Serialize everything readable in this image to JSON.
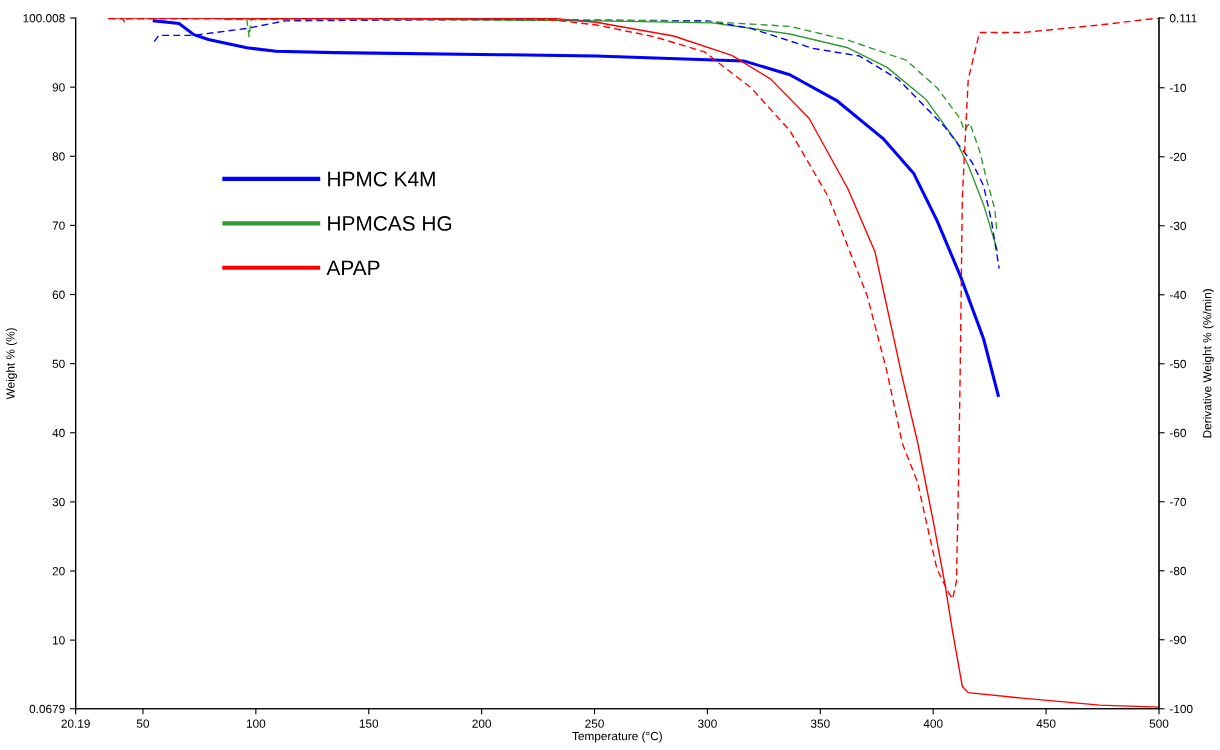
{
  "chart_data": {
    "type": "line",
    "xlabel": "Temperature (°C)",
    "ylabel": "Weight % (%)",
    "y2label": "Derivative Weight % (%/min)",
    "xlim": [
      20.19,
      500
    ],
    "xticks": [
      20.19,
      50,
      100,
      150,
      200,
      250,
      300,
      350,
      400,
      450,
      500
    ],
    "ylim": [
      0.0679,
      100.008
    ],
    "yticks": [
      0.0679,
      10,
      20,
      30,
      40,
      50,
      60,
      70,
      80,
      90,
      100.008
    ],
    "y2lim": [
      -100,
      0.111
    ],
    "y2ticks": [
      -100,
      -90,
      -80,
      -70,
      -60,
      -50,
      -40,
      -30,
      -20,
      -10,
      0.111
    ],
    "grid": false,
    "legend": "left",
    "series": [
      {
        "name": "HPMC K4M",
        "color": "#0000ff",
        "line_style": "solid",
        "x": [
          55,
          66,
          72.5,
          79,
          96,
          109,
          135,
          208,
          250.7,
          316,
          336.5,
          357.1,
          377.7,
          391.4,
          401.7,
          412,
          422.3,
          428.8
        ],
        "values": [
          99.6,
          99.2,
          97.6,
          96.9,
          95.7,
          95.2,
          95.0,
          94.7,
          94.5,
          93.8,
          91.8,
          88.1,
          82.6,
          77.5,
          70.7,
          62.7,
          53.6,
          45.4
        ]
      },
      {
        "name": "HPMCAS HG",
        "color": "#339933",
        "line_style": "solid",
        "x": [
          86,
          150,
          250.7,
          302.2,
          336.5,
          362.2,
          379.4,
          396.6,
          410.3,
          415.5,
          422.3,
          428.4
        ],
        "values": [
          99.9,
          99.9,
          99.6,
          99.3,
          97.7,
          95.7,
          92.9,
          88.3,
          82.1,
          78.7,
          73.0,
          66.4
        ]
      },
      {
        "name": "APAP",
        "color": "#ff0000",
        "line_style": "solid",
        "x": [
          34.8,
          233,
          250.7,
          285,
          310.8,
          327.9,
          345,
          362.2,
          374.2,
          386.3,
          393.1,
          400,
          405.2,
          408.6,
          412.9,
          415.5,
          439.5,
          473.8,
          500
        ],
        "values": [
          100,
          99.9,
          99.4,
          97.4,
          94.6,
          91.2,
          85.5,
          75.3,
          66.2,
          48,
          38.6,
          27.2,
          18.1,
          11.2,
          3.3,
          2.4,
          1.6,
          0.6,
          0.3
        ]
      },
      {
        "color": "#0000ff",
        "line_style": "dashed",
        "axis": "y2",
        "x": [
          55,
          57,
          62,
          72.5,
          96,
          113,
          200,
          300,
          319.3,
          346.8,
          367.4,
          384.6,
          405.2,
          417.2,
          422.3,
          425.8,
          429.2
        ],
        "values": [
          -3.3,
          -2.4,
          -2.4,
          -2.4,
          -1.4,
          -0.3,
          -0.1,
          -0.3,
          -1.4,
          -4.3,
          -5.4,
          -8.8,
          -15.7,
          -20.8,
          -24.2,
          -29.3,
          -36.2
        ]
      },
      {
        "color": "#339933",
        "line_style": "dashed",
        "axis": "y2",
        "x": [
          86,
          96,
          97,
          98,
          150,
          250,
          300,
          336.5,
          362.2,
          388,
          401.7,
          412,
          413.7,
          416.2,
          420.5,
          423.9,
          427.3,
          428.1
        ],
        "values": [
          -0.1,
          -0.1,
          -2.6,
          -0.1,
          -0.1,
          -0.2,
          -0.4,
          -1.1,
          -3.1,
          -6.0,
          -10.0,
          -14.5,
          -16.2,
          -15.1,
          -19.1,
          -23.6,
          -27.6,
          -30.5
        ]
      },
      {
        "color": "#ff0000",
        "line_style": "dashed",
        "axis": "y2",
        "x": [
          34.8,
          41,
          42,
          43,
          150,
          230,
          250.7,
          276.4,
          298.7,
          319.3,
          336.5,
          353.7,
          370.8,
          379.4,
          386.3,
          393.1,
          396.6,
          401.7,
          406.9,
          408.6,
          410.3,
          411.2,
          412,
          412.9,
          415.5,
          420.5,
          439.5,
          473.8,
          499.6
        ],
        "values": [
          0.0,
          0.0,
          -0.6,
          0.0,
          0.0,
          -0.1,
          -0.9,
          -2.6,
          -4.8,
          -10,
          -16.2,
          -25.9,
          -40.2,
          -51,
          -61.5,
          -67.2,
          -72.4,
          -79.8,
          -83.2,
          -84.1,
          -81.5,
          -67.2,
          -50.1,
          -25.9,
          -8.8,
          -2.0,
          -2.0,
          -0.9,
          0.1
        ]
      }
    ]
  }
}
